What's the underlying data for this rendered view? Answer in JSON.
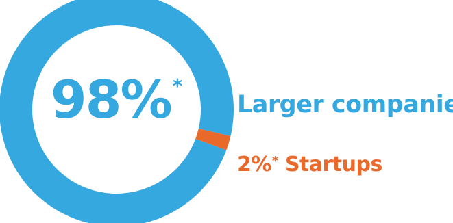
{
  "chart_data": {
    "type": "pie",
    "categories": [
      "Larger companies",
      "Startups"
    ],
    "values": [
      98,
      2
    ],
    "colors": [
      "#36a8e0",
      "#e8692a"
    ],
    "style": "donut",
    "center_label": {
      "value": "98%",
      "marker": "*"
    },
    "legend": [
      {
        "label": "Larger companies",
        "value": "",
        "marker": ""
      },
      {
        "label": "Startups",
        "value": "2%",
        "marker": "*"
      }
    ]
  }
}
